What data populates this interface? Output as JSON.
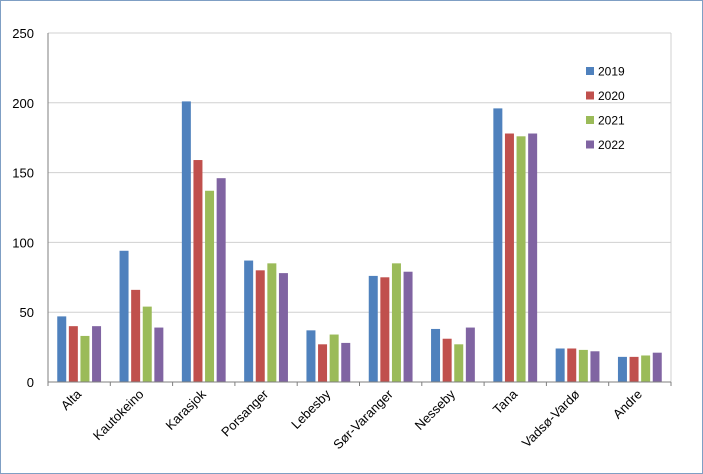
{
  "chart_data": {
    "type": "bar",
    "title": "",
    "xlabel": "",
    "ylabel": "",
    "ylim": [
      0,
      250
    ],
    "yticks": [
      "0",
      "50",
      "100",
      "150",
      "200",
      "250"
    ],
    "grid": true,
    "legend_position": "top-right",
    "categories": [
      "Alta",
      "Kautokeino",
      "Karasjok",
      "Porsanger",
      "Lebesby",
      "Sør-Varanger",
      "Nesseby",
      "Tana",
      "Vadsø-Vardø",
      "Andre"
    ],
    "series": [
      {
        "name": "2019",
        "color": "#4f81bd",
        "values": [
          47,
          94,
          201,
          87,
          37,
          76,
          38,
          196,
          24,
          18
        ]
      },
      {
        "name": "2020",
        "color": "#c0504d",
        "values": [
          40,
          66,
          159,
          80,
          27,
          75,
          31,
          178,
          24,
          18
        ]
      },
      {
        "name": "2021",
        "color": "#9bbb59",
        "values": [
          33,
          54,
          137,
          85,
          34,
          85,
          27,
          176,
          23,
          19
        ]
      },
      {
        "name": "2022",
        "color": "#8064a2",
        "values": [
          40,
          39,
          146,
          78,
          28,
          79,
          39,
          178,
          22,
          21
        ]
      }
    ]
  }
}
